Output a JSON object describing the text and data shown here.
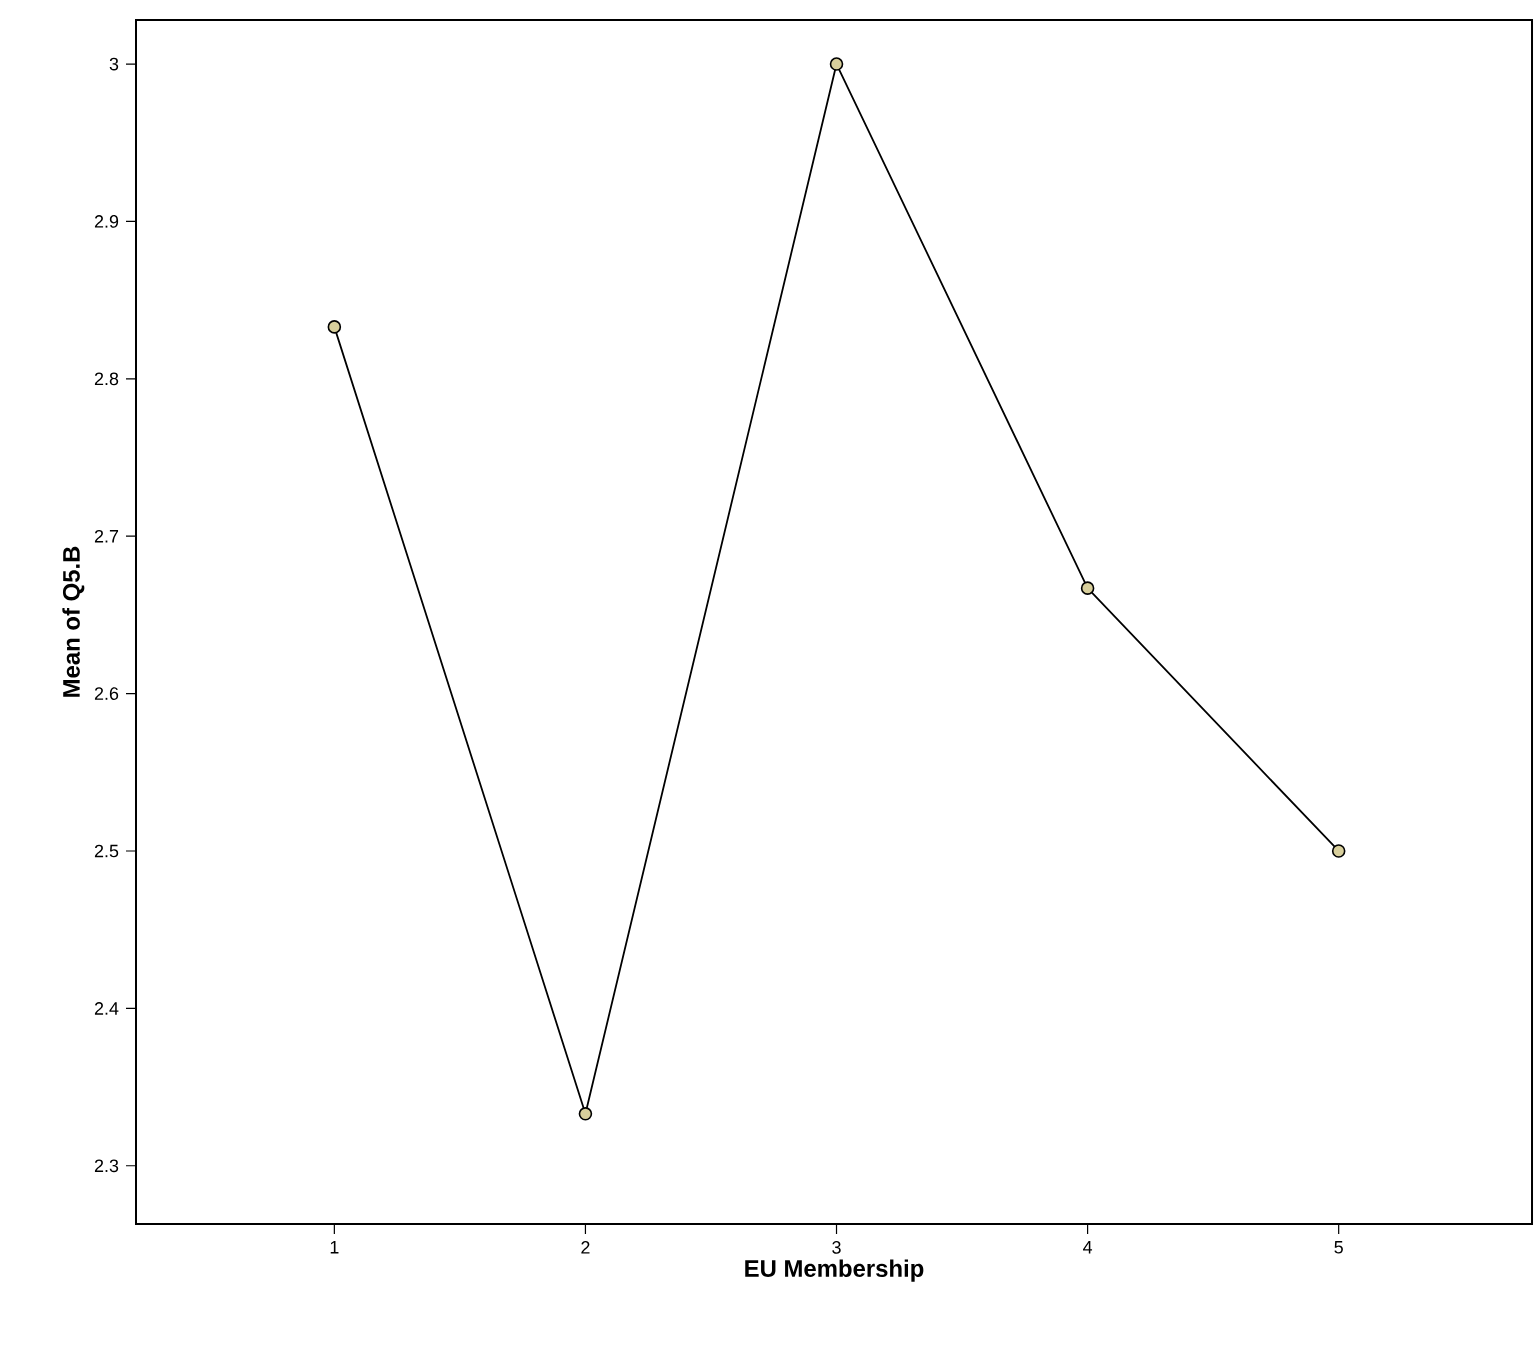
{
  "chart_data": {
    "type": "line",
    "xlabel": "EU Membership",
    "ylabel": "Mean of Q5.B",
    "categories": [
      "1",
      "2",
      "3",
      "4",
      "5"
    ],
    "series": [
      {
        "color": "#000000",
        "values": [
          2.833,
          2.333,
          3.0,
          2.667,
          2.5
        ]
      }
    ],
    "marker": "circle",
    "line_style": "solid",
    "grid": false,
    "ylim": [
      2.263,
      3.028
    ],
    "yticks": [
      {
        "value": 2.3,
        "label": "2.3"
      },
      {
        "value": 2.4,
        "label": "2.4"
      },
      {
        "value": 2.5,
        "label": "2.5"
      },
      {
        "value": 2.6,
        "label": "2.6"
      },
      {
        "value": 2.7,
        "label": "2.7"
      },
      {
        "value": 2.8,
        "label": "2.8"
      },
      {
        "value": 2.9,
        "label": "2.9"
      },
      {
        "value": 3.0,
        "label": "3"
      }
    ]
  }
}
